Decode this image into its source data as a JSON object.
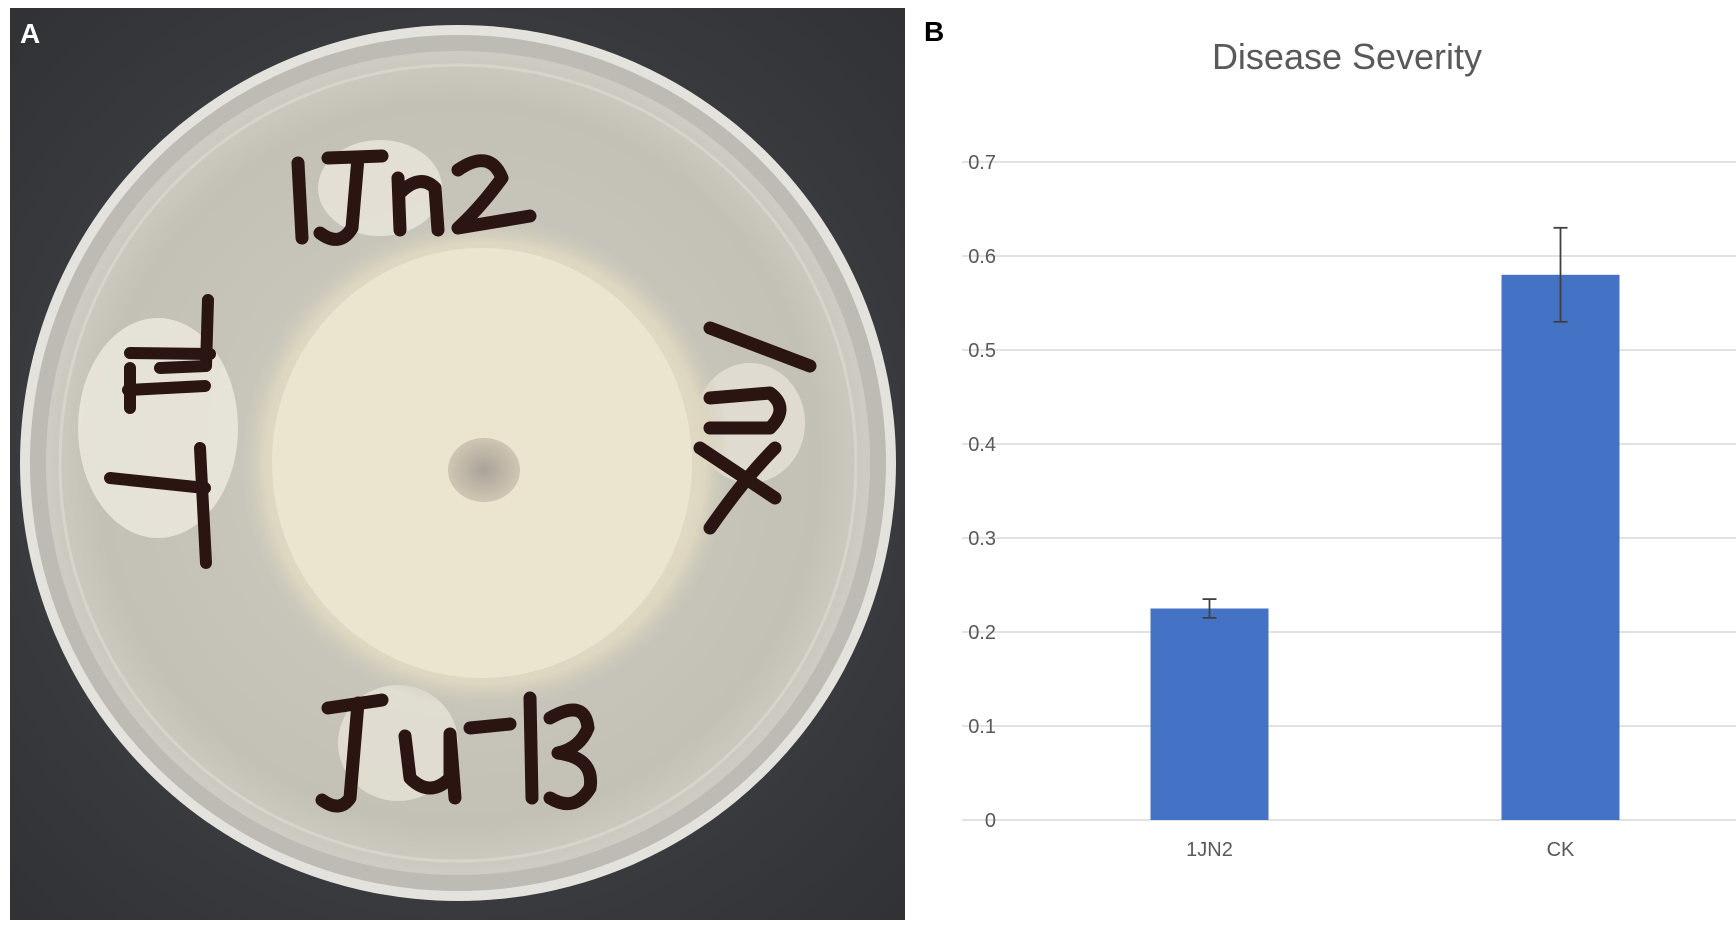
{
  "panels": {
    "a_label": "A",
    "b_label": "B"
  },
  "photo": {
    "description_icon": "petri-dish-photo",
    "plate_labels": [
      "1Jn2",
      "L171",
      "X5-1",
      "Ju-13"
    ],
    "colors": {
      "background": "#3a3c40",
      "agar": "#c9c7bd",
      "mycelium": "#e9e2cc",
      "marker": "#2b1512"
    }
  },
  "chart_data": {
    "type": "bar",
    "title": "Disease Severity",
    "categories": [
      "1JN2",
      "CK"
    ],
    "series": [
      {
        "values": [
          0.225,
          0.58
        ],
        "errors": [
          0.01,
          0.05
        ],
        "color": "#4472c4"
      }
    ],
    "ylim": [
      0,
      0.7
    ],
    "yticks": [
      "0",
      "0.1",
      "0.2",
      "0.3",
      "0.4",
      "0.5",
      "0.6",
      "0.7"
    ],
    "grid": true,
    "xlabel": "",
    "ylabel": ""
  }
}
